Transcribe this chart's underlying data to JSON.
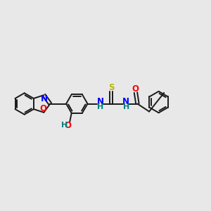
{
  "background_color": "#e8e8e8",
  "bond_color": "#1a1a1a",
  "atom_colors": {
    "O": "#ff0000",
    "N": "#0000ff",
    "S": "#b8b800",
    "H_teal": "#008080",
    "C": "#1a1a1a"
  },
  "lw": 1.4,
  "ring_r": 0.62,
  "xlim": [
    0,
    12
  ],
  "ylim": [
    0,
    10
  ]
}
